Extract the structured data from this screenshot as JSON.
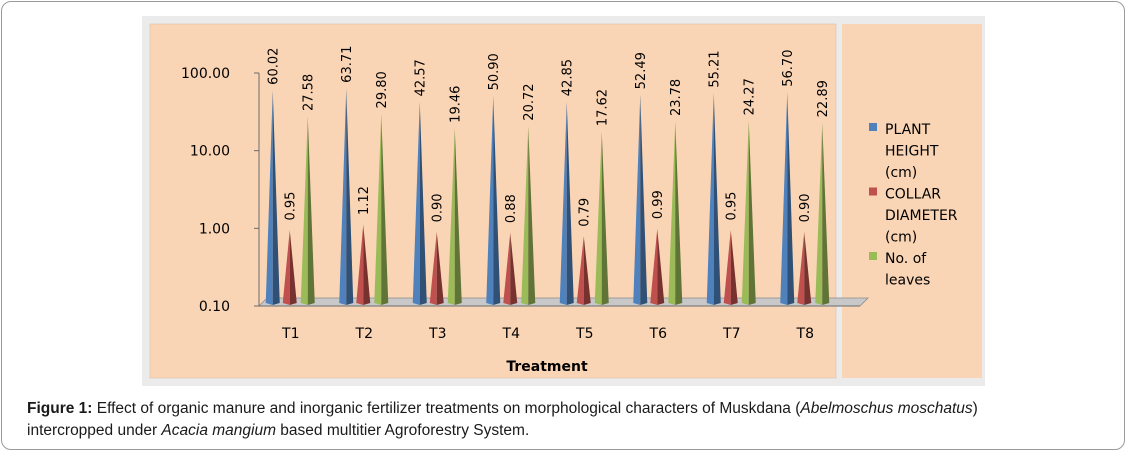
{
  "chart_data": {
    "type": "bar",
    "style": "3d-cone-log",
    "xlabel": "Treatment",
    "ylabel": "",
    "yscale": "log",
    "ylim": [
      0.1,
      100
    ],
    "ytick_labels": [
      "100.00",
      "10.00",
      "1.00",
      "0.10"
    ],
    "ytick_values": [
      100,
      10,
      1,
      0.1
    ],
    "categories": [
      "T1",
      "T2",
      "T3",
      "T4",
      "T5",
      "T6",
      "T7",
      "T8"
    ],
    "series": [
      {
        "name": "PLANT HEIGHT (cm)",
        "legend_lines": [
          "PLANT",
          "HEIGHT",
          "(cm)"
        ],
        "color": "#4f81bd",
        "values": [
          60.02,
          63.71,
          42.57,
          50.9,
          42.85,
          52.49,
          55.21,
          56.7
        ],
        "labels": [
          "60.02",
          "63.71",
          "42.57",
          "50.90",
          "42.85",
          "52.49",
          "55.21",
          "56.70"
        ]
      },
      {
        "name": "COLLAR DIAMETER (cm)",
        "legend_lines": [
          "COLLAR",
          "DIAMETER",
          "(cm)"
        ],
        "color": "#c0504d",
        "values": [
          0.95,
          1.12,
          0.9,
          0.88,
          0.79,
          0.99,
          0.95,
          0.9
        ],
        "labels": [
          "0.95",
          "1.12",
          "0.90",
          "0.88",
          "0.79",
          "0.99",
          "0.95",
          "0.90"
        ]
      },
      {
        "name": "No. of leaves",
        "legend_lines": [
          "No. of",
          "leaves"
        ],
        "color": "#9bbb59",
        "values": [
          27.58,
          29.8,
          19.46,
          20.72,
          17.62,
          23.78,
          24.27,
          22.89
        ],
        "labels": [
          "27.58",
          "29.80",
          "19.46",
          "20.72",
          "17.62",
          "23.78",
          "24.27",
          "22.89"
        ]
      }
    ],
    "plot_background": "#fad5b5",
    "chart_background": "#ebebeb"
  },
  "caption": {
    "label": "Figure 1:",
    "text_1": " Effect of organic manure and inorganic fertilizer treatments on morphological characters of Muskdana (",
    "italic_1": "Abelmoschus moschatus",
    "text_2": ")",
    "text_3": "intercropped under ",
    "italic_2": "Acacia mangium",
    "text_4": " based multitier Agroforestry System."
  }
}
